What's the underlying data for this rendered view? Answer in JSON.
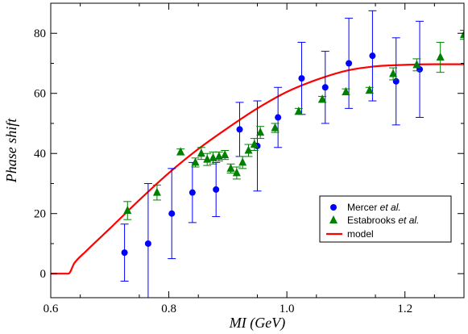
{
  "chart_data": {
    "type": "scatter",
    "title": "",
    "xlabel": "MI (GeV)",
    "ylabel": "Phase shift",
    "xlim": [
      0.6,
      1.3
    ],
    "ylim": [
      -8,
      90
    ],
    "x_ticks": [
      "0.6",
      "0.8",
      "1.0",
      "1.2"
    ],
    "y_ticks": [
      "0",
      "20",
      "40",
      "60",
      "80"
    ],
    "grid": false,
    "legend_position": "lower-right",
    "series": [
      {
        "name_parts": [
          "Mercer ",
          "et al."
        ],
        "marker": "circle",
        "color": "#0000ff",
        "points": [
          {
            "x": 0.725,
            "y": 7,
            "err": 9.5
          },
          {
            "x": 0.765,
            "y": 10,
            "err": 20
          },
          {
            "x": 0.805,
            "y": 20,
            "err": 15
          },
          {
            "x": 0.84,
            "y": 27,
            "err": 10
          },
          {
            "x": 0.88,
            "y": 28,
            "err": 9
          },
          {
            "x": 0.92,
            "y": 48,
            "err": 9
          },
          {
            "x": 0.95,
            "y": 42.5,
            "err": 15
          },
          {
            "x": 0.985,
            "y": 52,
            "err": 10
          },
          {
            "x": 1.025,
            "y": 65,
            "err": 12
          },
          {
            "x": 1.065,
            "y": 62,
            "err": 12
          },
          {
            "x": 1.105,
            "y": 70,
            "err": 15
          },
          {
            "x": 1.145,
            "y": 72.5,
            "err": 15
          },
          {
            "x": 1.185,
            "y": 64,
            "err": 14.5
          },
          {
            "x": 1.225,
            "y": 68,
            "err": 16
          }
        ]
      },
      {
        "name_parts": [
          "Estabrooks ",
          "et al."
        ],
        "marker": "triangle",
        "color": "#008000",
        "points": [
          {
            "x": 0.73,
            "y": 21,
            "err": 3
          },
          {
            "x": 0.78,
            "y": 27,
            "err": 2.5
          },
          {
            "x": 0.82,
            "y": 40.5,
            "err": 1
          },
          {
            "x": 0.845,
            "y": 37,
            "err": 1.5
          },
          {
            "x": 0.855,
            "y": 40,
            "err": 2
          },
          {
            "x": 0.865,
            "y": 38,
            "err": 2
          },
          {
            "x": 0.875,
            "y": 38.5,
            "err": 2
          },
          {
            "x": 0.885,
            "y": 39,
            "err": 1.5
          },
          {
            "x": 0.895,
            "y": 39.5,
            "err": 1.5
          },
          {
            "x": 0.905,
            "y": 35,
            "err": 1.5
          },
          {
            "x": 0.915,
            "y": 33.5,
            "err": 2
          },
          {
            "x": 0.925,
            "y": 37,
            "err": 2
          },
          {
            "x": 0.935,
            "y": 41,
            "err": 2
          },
          {
            "x": 0.945,
            "y": 43,
            "err": 2
          },
          {
            "x": 0.955,
            "y": 47,
            "err": 2
          },
          {
            "x": 0.98,
            "y": 48.5,
            "err": 1.5
          },
          {
            "x": 1.02,
            "y": 54,
            "err": 1
          },
          {
            "x": 1.06,
            "y": 58,
            "err": 1
          },
          {
            "x": 1.1,
            "y": 60.5,
            "err": 1
          },
          {
            "x": 1.14,
            "y": 61,
            "err": 1
          },
          {
            "x": 1.18,
            "y": 66.5,
            "err": 2
          },
          {
            "x": 1.22,
            "y": 69.5,
            "err": 2
          },
          {
            "x": 1.26,
            "y": 72,
            "err": 5
          },
          {
            "x": 1.3,
            "y": 79.5,
            "err": 1.5
          }
        ]
      }
    ],
    "model": {
      "name": "model",
      "color": "#ff0000",
      "x": [
        0.6,
        0.63,
        0.64,
        0.66,
        0.7,
        0.75,
        0.8,
        0.85,
        0.9,
        0.95,
        1.0,
        1.05,
        1.1,
        1.15,
        1.2,
        1.25,
        1.3
      ],
      "y": [
        0,
        0,
        3.5,
        7.5,
        15,
        24.5,
        33.5,
        41.5,
        48.5,
        55,
        60.5,
        64.5,
        67.5,
        69,
        69.5,
        69.7,
        69.7
      ]
    }
  }
}
